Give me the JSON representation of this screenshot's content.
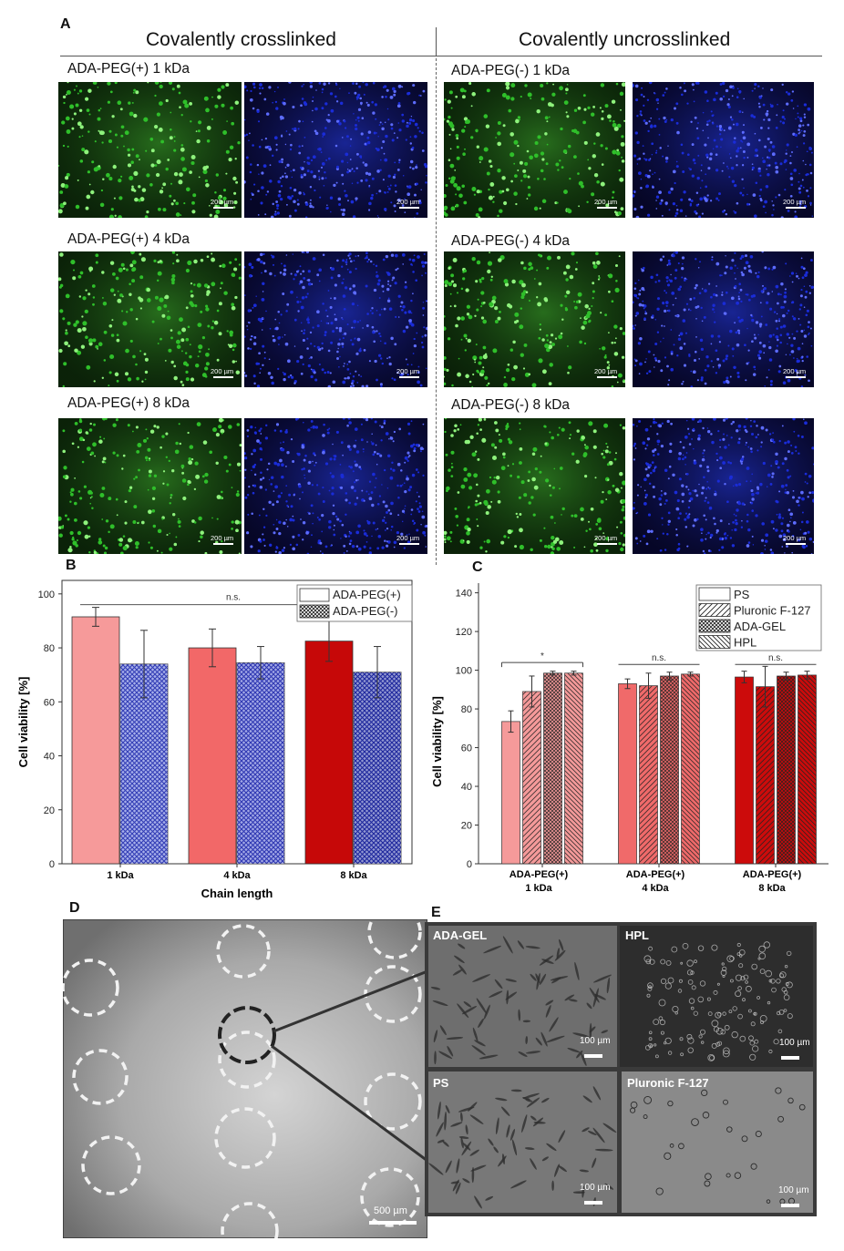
{
  "panelA": {
    "letter": "A",
    "left_title": "Covalently crosslinked",
    "right_title": "Covalently uncrosslinked",
    "scale_label": "200 µm",
    "rows": [
      {
        "left": "ADA-PEG(+) 1 kDa",
        "right": "ADA-PEG(-) 1 kDa"
      },
      {
        "left": "ADA-PEG(+) 4 kDa",
        "right": "ADA-PEG(-) 4 kDa"
      },
      {
        "left": "ADA-PEG(+) 8 kDa",
        "right": "ADA-PEG(-) 8 kDa"
      }
    ],
    "colors": {
      "live": "#2fbf2a",
      "dead": "#1a2cd8"
    }
  },
  "panelB": {
    "letter": "B",
    "significance": "n.s.",
    "chart_data": {
      "type": "bar",
      "categories": [
        "1 kDa",
        "4 kDa",
        "8 kDa"
      ],
      "series": [
        {
          "name": "ADA-PEG(+)",
          "values": [
            91.5,
            80,
            82.5
          ],
          "errors": [
            3.5,
            7,
            7.5
          ]
        },
        {
          "name": "ADA-PEG(-)",
          "values": [
            74,
            74.5,
            71
          ],
          "errors": [
            12.5,
            6,
            9.5
          ]
        }
      ],
      "xlabel": "Chain length",
      "ylabel": "Cell viability [%]",
      "ylim": [
        0,
        105
      ],
      "yticks": [
        0,
        20,
        40,
        60,
        80,
        100
      ],
      "legend": "top-right"
    }
  },
  "panelC": {
    "letter": "C",
    "significance": [
      "*",
      "n.s.",
      "n.s."
    ],
    "chart_data": {
      "type": "bar",
      "categories": [
        "ADA-PEG(+)\n1 kDa",
        "ADA-PEG(+)\n4 kDa",
        "ADA-PEG(+)\n8 kDa"
      ],
      "category_lines": [
        [
          "ADA-PEG(+)",
          "1 kDa"
        ],
        [
          "ADA-PEG(+)",
          "4 kDa"
        ],
        [
          "ADA-PEG(+)",
          "8 kDa"
        ]
      ],
      "series": [
        {
          "name": "PS",
          "values": [
            73.5,
            93,
            96.5
          ],
          "errors": [
            5.5,
            2.5,
            3
          ]
        },
        {
          "name": "Pluronic F-127",
          "values": [
            89,
            92,
            91.5
          ],
          "errors": [
            8,
            6.5,
            10.5
          ]
        },
        {
          "name": "ADA-GEL",
          "values": [
            98.5,
            97,
            97
          ],
          "errors": [
            1,
            2,
            2
          ]
        },
        {
          "name": "HPL",
          "values": [
            98.5,
            98,
            97.5
          ],
          "errors": [
            1,
            1,
            2
          ]
        }
      ],
      "ylabel": "Cell viability [%]",
      "ylim": [
        0,
        145
      ],
      "yticks": [
        0,
        20,
        40,
        60,
        80,
        100,
        120,
        140
      ],
      "legend": "top-right"
    }
  },
  "panelD": {
    "letter": "D",
    "scale_label": "500 µm"
  },
  "panelE": {
    "letter": "E",
    "scale_label": "100 µm",
    "tiles": [
      "ADA-GEL",
      "HPL",
      "PS",
      "Pluronic F-127"
    ]
  }
}
